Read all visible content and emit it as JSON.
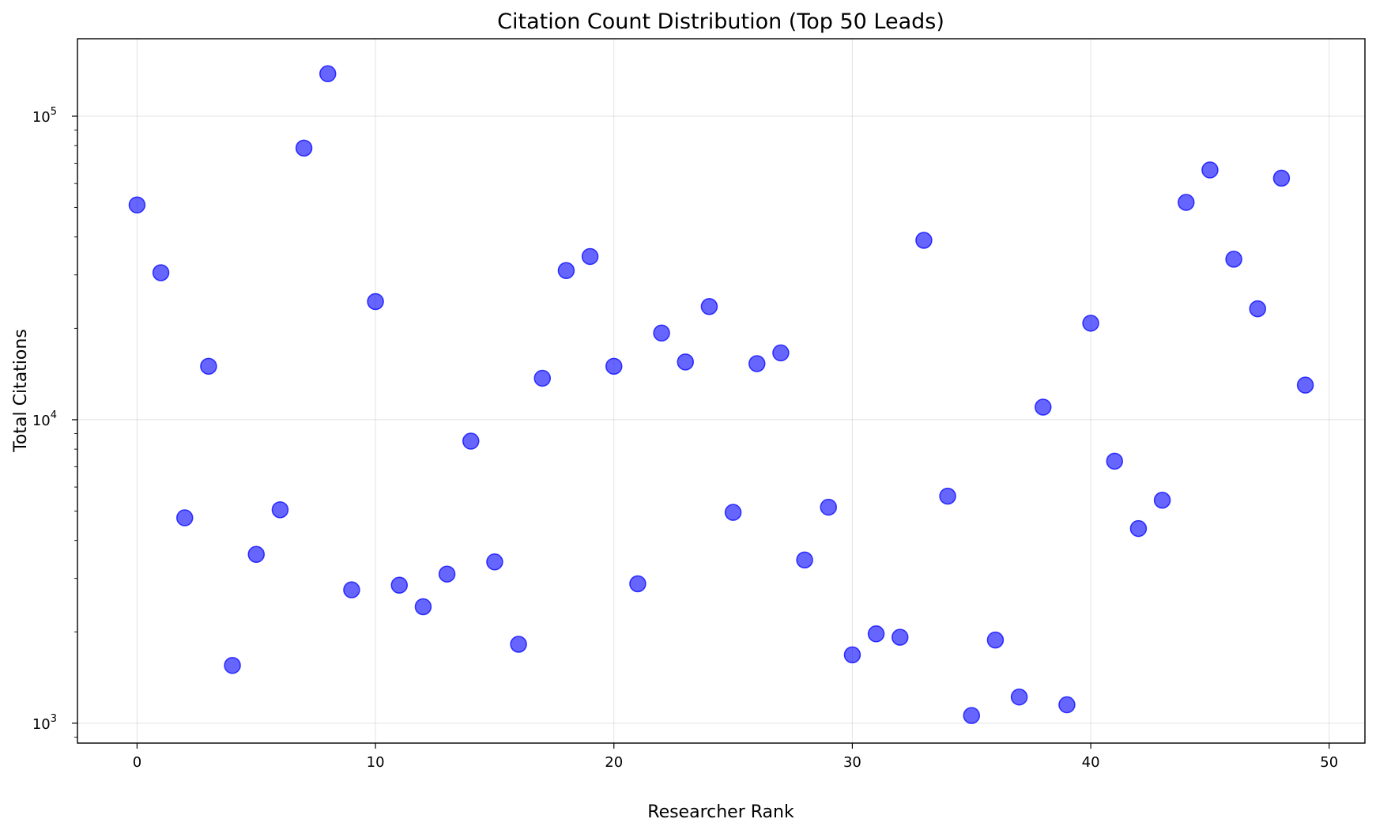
{
  "chart_data": {
    "type": "scatter",
    "title": "Citation Count Distribution (Top 50 Leads)",
    "xlabel": "Researcher Rank",
    "ylabel": "Total Citations",
    "yscale": "log",
    "xlim": [
      -2.5,
      51.5
    ],
    "ylim": [
      860,
      180000
    ],
    "xticks": [
      0,
      10,
      20,
      30,
      40,
      50
    ],
    "xtick_labels": [
      "0",
      "10",
      "20",
      "30",
      "40",
      "50"
    ],
    "yticks": [
      1000,
      10000,
      100000
    ],
    "ytick_labels": [
      {
        "base": "10",
        "exp": "3"
      },
      {
        "base": "10",
        "exp": "4"
      },
      {
        "base": "10",
        "exp": "5"
      }
    ],
    "grid": true,
    "color": "#0000ff",
    "x": [
      0,
      1,
      2,
      3,
      4,
      5,
      6,
      7,
      8,
      9,
      10,
      11,
      12,
      13,
      14,
      15,
      16,
      17,
      18,
      19,
      20,
      21,
      22,
      23,
      24,
      25,
      26,
      27,
      28,
      29,
      30,
      31,
      32,
      33,
      34,
      35,
      36,
      37,
      38,
      39,
      40,
      41,
      42,
      43,
      44,
      45,
      46,
      47,
      48,
      49
    ],
    "y": [
      51000,
      30500,
      4750,
      15000,
      1550,
      3600,
      5050,
      78500,
      138000,
      2750,
      24500,
      2850,
      2420,
      3100,
      8500,
      3400,
      1820,
      13700,
      31000,
      34500,
      15000,
      2880,
      19300,
      15500,
      23600,
      4950,
      15300,
      16600,
      3450,
      5150,
      1680,
      1970,
      1920,
      39000,
      5600,
      1060,
      1880,
      1220,
      11000,
      1150,
      20800,
      7300,
      4380,
      5430,
      52000,
      66500,
      33800,
      23200,
      62500,
      13000
    ]
  }
}
